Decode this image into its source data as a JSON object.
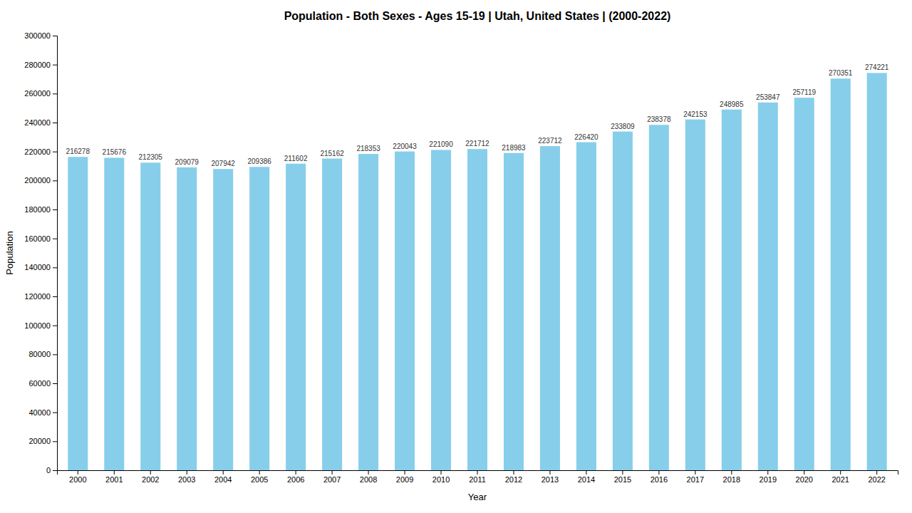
{
  "chart_data": {
    "type": "bar",
    "title": "Population - Both Sexes - Ages 15-19 | Utah, United States |  (2000-2022)",
    "x_label": "Year",
    "y_label": "Population",
    "categories": [
      "2000",
      "2001",
      "2002",
      "2003",
      "2004",
      "2005",
      "2006",
      "2007",
      "2008",
      "2009",
      "2010",
      "2011",
      "2012",
      "2013",
      "2014",
      "2015",
      "2016",
      "2017",
      "2018",
      "2019",
      "2020",
      "2021",
      "2022"
    ],
    "values": [
      216278,
      215676,
      212305,
      209079,
      207942,
      209386,
      211602,
      215162,
      218353,
      220043,
      221090,
      221712,
      218983,
      223712,
      226420,
      233809,
      238378,
      242153,
      248985,
      253847,
      257119,
      270351,
      274221
    ],
    "color": "#87CEEB",
    "ylim": [
      0,
      300000
    ],
    "yticks": [
      0,
      20000,
      40000,
      60000,
      80000,
      100000,
      120000,
      140000,
      160000,
      180000,
      200000,
      220000,
      240000,
      260000,
      280000,
      300000
    ],
    "grid": false,
    "data_labels": true
  }
}
